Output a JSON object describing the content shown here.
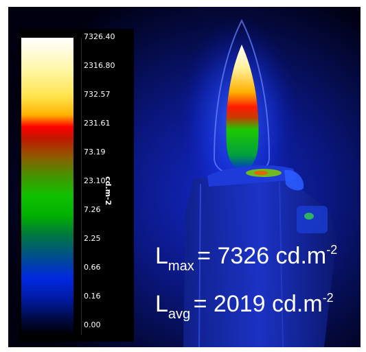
{
  "colorbar": {
    "ticks": [
      "7326.40",
      "2316.80",
      "732.57",
      "231.61",
      "73.19",
      "23.10",
      "7.26",
      "2.25",
      "0.66",
      "0.16",
      "0.00"
    ],
    "unit_label": "cd.m-2"
  },
  "stats": {
    "lmax": {
      "symbol": "L",
      "subscript": "max",
      "value_text": "= 7326 cd.m",
      "exponent": "-2"
    },
    "lavg": {
      "symbol": "L",
      "subscript": "avg",
      "value_text": "= 2019 cd.m",
      "exponent": "-2"
    }
  },
  "colors": {
    "background": "#000008",
    "text": "#ffffff",
    "glow_blue": "#1a33ff"
  }
}
